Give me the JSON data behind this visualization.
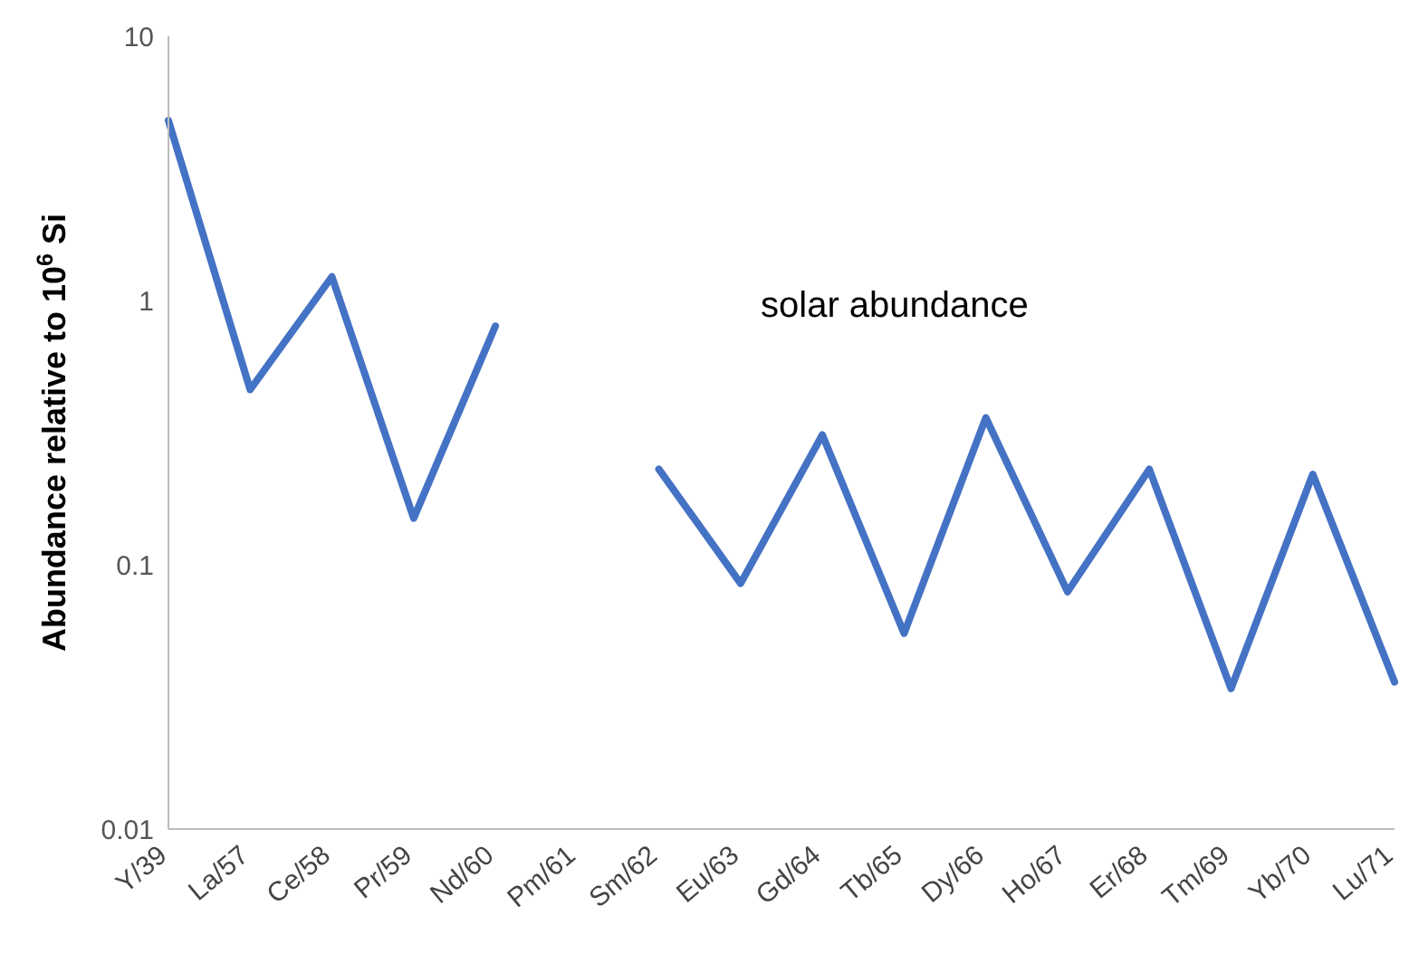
{
  "chart_data": {
    "type": "line",
    "ylabel": "Abundance relative to 10$^{6}$ Si",
    "annotations": [
      "solar abundance"
    ],
    "categories": [
      "Y/39",
      "La/57",
      "Ce/58",
      "Pr/59",
      "Nd/60",
      "Pm/61",
      "Sm/62",
      "Eu/63",
      "Gd/64",
      "Tb/65",
      "Dy/66",
      "Ho/67",
      "Er/68",
      "Tm/69",
      "Yb/70",
      "Lu/71"
    ],
    "series": [
      {
        "color": "#4472c4",
        "values": [
          4.8,
          0.46,
          1.23,
          0.15,
          0.8,
          null,
          0.23,
          0.085,
          0.31,
          0.055,
          0.36,
          0.079,
          0.23,
          0.034,
          0.22,
          0.036
        ]
      }
    ],
    "log": true,
    "ylim": [
      0.01,
      10
    ],
    "yticks": [
      0.01,
      0.1,
      1,
      10
    ],
    "grid": false,
    "legend": false,
    "marker": "none",
    "line_style": "solid"
  }
}
